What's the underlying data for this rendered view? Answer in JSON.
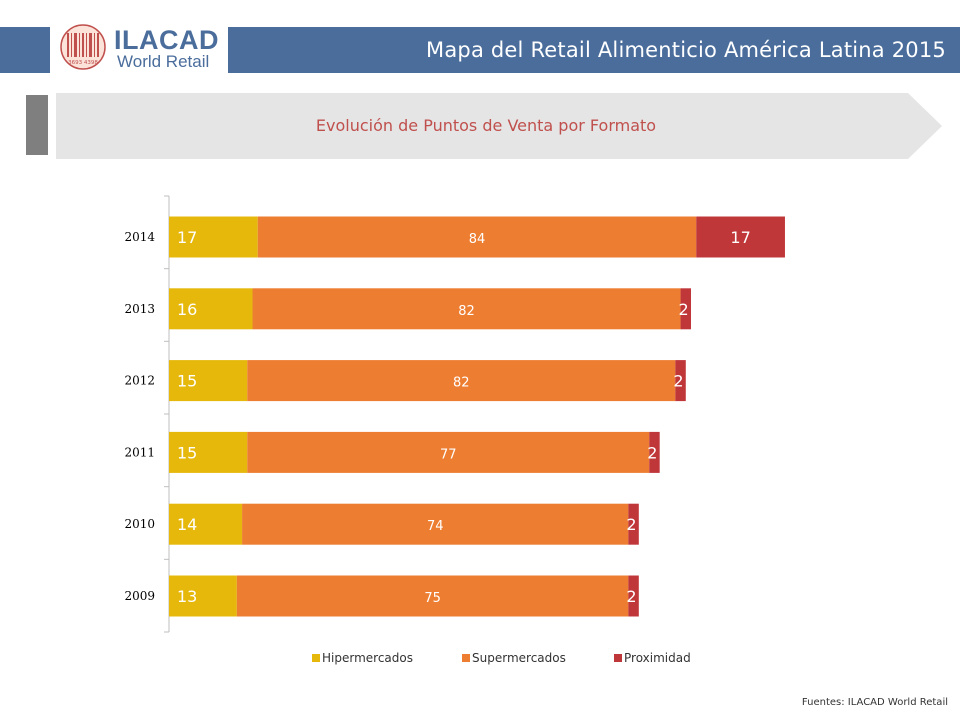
{
  "header": {
    "title": "Mapa del Retail Alimenticio América Latina 2015",
    "logo_line1": "ILACAD",
    "logo_line2": "World Retail",
    "logo_codes": "3693 4398"
  },
  "section": {
    "title": "Evolución de Puntos de Venta por Formato"
  },
  "chart_data": {
    "type": "bar",
    "orientation": "horizontal",
    "stacked": true,
    "categories": [
      "2014",
      "2013",
      "2012",
      "2011",
      "2010",
      "2009"
    ],
    "series": [
      {
        "name": "Hipermercados",
        "color": "#e5b80b",
        "values": [
          17,
          16,
          15,
          15,
          14,
          13
        ],
        "labels": [
          "17",
          "16",
          "15",
          "15",
          "14",
          "13"
        ]
      },
      {
        "name": "Supermercados",
        "color": "#ed7d31",
        "values": [
          84,
          82,
          82,
          77,
          74,
          75
        ],
        "labels": [
          "84",
          "82",
          "82",
          "77",
          "74",
          "75"
        ]
      },
      {
        "name": "Proximidad",
        "color": "#c0373a",
        "values": [
          17,
          2,
          2,
          2,
          2,
          2
        ],
        "labels": [
          "17",
          "2",
          "2",
          "2",
          "2",
          "2"
        ]
      }
    ],
    "grid": false,
    "legend_position": "bottom"
  },
  "footer": {
    "source": "Fuentes: ILACAD World Retail"
  },
  "colors": {
    "header_bg": "#4a6d9c",
    "title_red": "#c0504d",
    "marker_gray": "#7f7f7f",
    "banner_bg": "#e5e5e5"
  }
}
